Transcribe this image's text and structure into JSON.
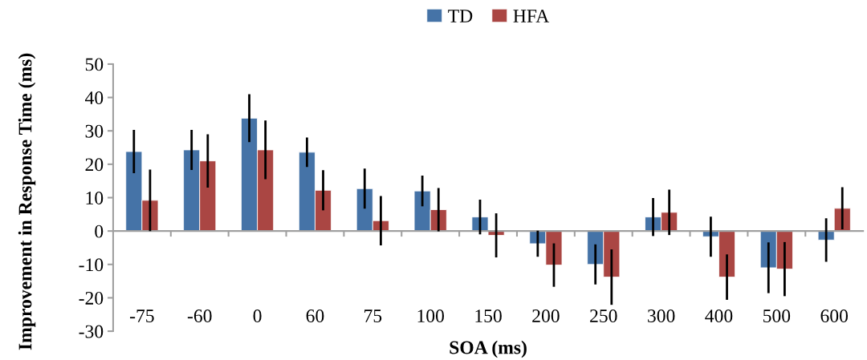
{
  "chart_data": {
    "type": "bar",
    "xlabel": "SOA (ms)",
    "ylabel": "Improvement in Response Time (ms)",
    "categories": [
      "-75",
      "-60",
      "0",
      "60",
      "75",
      "100",
      "150",
      "200",
      "250",
      "300",
      "400",
      "500",
      "600"
    ],
    "series": [
      {
        "name": "TD",
        "color": "#4573a7",
        "values": [
          23.8,
          24.3,
          33.8,
          23.6,
          12.7,
          12,
          4.2,
          -3.8,
          -10,
          4.2,
          -1.7,
          -11,
          -2.7
        ],
        "errors": [
          6.5,
          6,
          7.2,
          4.4,
          6,
          4.6,
          5.2,
          3.9,
          6,
          5.7,
          6,
          7.6,
          6.5
        ]
      },
      {
        "name": "HFA",
        "color": "#aa4643",
        "values": [
          9.2,
          21,
          24.3,
          12.2,
          3.1,
          6.4,
          -1.3,
          -10.2,
          -13.8,
          5.6,
          -13.8,
          -11.4,
          6.8
        ],
        "errors": [
          9.2,
          8,
          8.8,
          6,
          7.4,
          6.5,
          6.6,
          6.5,
          8.3,
          6.8,
          6.8,
          8.1,
          6.3
        ]
      }
    ],
    "ylim": [
      -30,
      50
    ],
    "yticks": [
      -30,
      -20,
      -10,
      0,
      10,
      20,
      30,
      40,
      50
    ],
    "legend": "top"
  }
}
